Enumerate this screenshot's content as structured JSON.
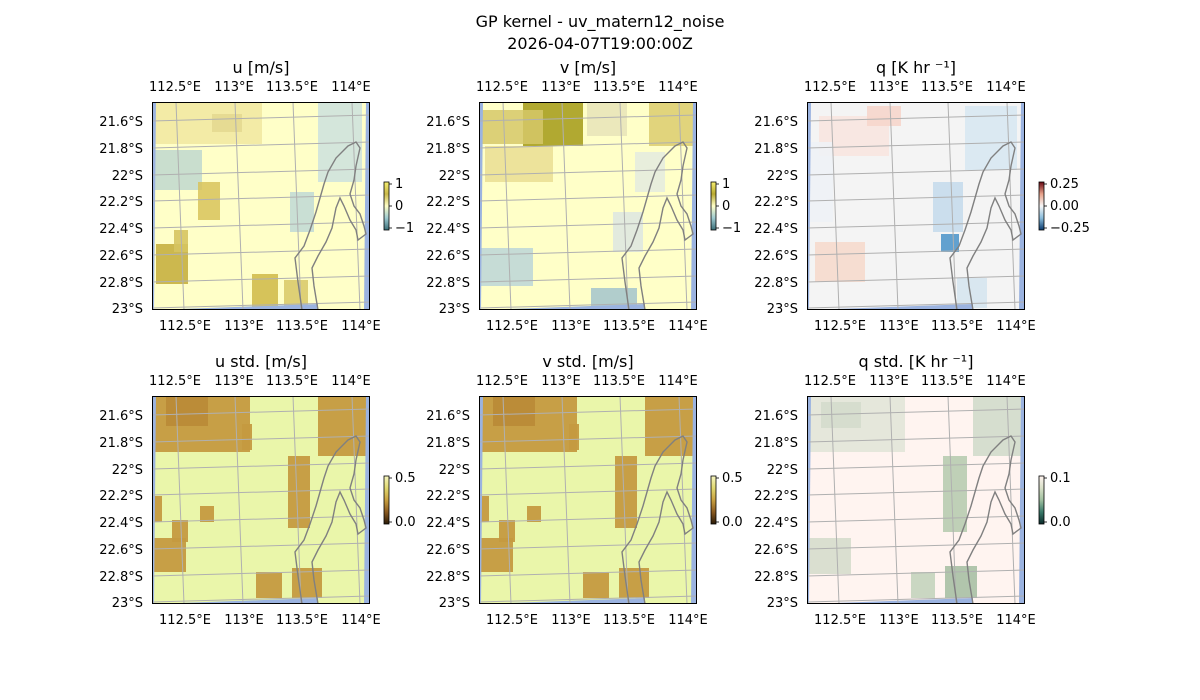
{
  "figure": {
    "title": "GP kernel - uv_matern12_noise",
    "subtitle": "2026-04-07T19:00:00Z"
  },
  "colors": {
    "land": "#9bb3e0",
    "grid": "#b0b0b0",
    "coast": "#808080",
    "frame": "#000000"
  },
  "axes": {
    "lon_ticks": [
      "112.5°E",
      "113°E",
      "113.5°E",
      "114°E"
    ],
    "lat_ticks": [
      "21.6°S",
      "21.8°S",
      "22°S",
      "22.2°S",
      "22.4°S",
      "22.6°S",
      "22.8°S",
      "23°S"
    ]
  },
  "panels": [
    {
      "title": "u [m/s]",
      "colormap": "diverging-gold-teal",
      "background": "#ffffc8",
      "colorbar": {
        "ticks": [
          "1",
          "0",
          "−1"
        ],
        "stops": [
          "#f6ef70",
          "#c8b84a",
          "#ffffc8",
          "#9ecad0",
          "#3a6e78"
        ]
      }
    },
    {
      "title": "v [m/s]",
      "colormap": "diverging-olive-teal",
      "background": "#ffffc8",
      "colorbar": {
        "ticks": [
          "1",
          "0",
          "−1"
        ],
        "stops": [
          "#f6ef70",
          "#b8a830",
          "#ffffc8",
          "#9ecad0",
          "#3a6e78"
        ]
      }
    },
    {
      "title": "q [K hr ⁻¹]",
      "colormap": "diverging-red-blue",
      "background": "#f4f4f4",
      "colorbar": {
        "ticks": [
          "0.25",
          "0.00",
          "−0.25"
        ],
        "stops": [
          "#6b0a15",
          "#e7a28a",
          "#f7f7f7",
          "#8bbddc",
          "#0a3a6e"
        ]
      }
    },
    {
      "title": "u std. [m/s]",
      "colormap": "sequential-yellow-brown",
      "background": "#eaf6aa",
      "colorbar": {
        "ticks": [
          "0.5",
          "0.0"
        ],
        "stops": [
          "#f6f6c0",
          "#e0d870",
          "#c8a040",
          "#8a5a20",
          "#2a1a08"
        ]
      }
    },
    {
      "title": "v std. [m/s]",
      "colormap": "sequential-yellow-brown",
      "background": "#eaf6aa",
      "colorbar": {
        "ticks": [
          "0.5",
          "0.0"
        ],
        "stops": [
          "#f6f6c0",
          "#e0d870",
          "#c8a040",
          "#8a5a20",
          "#2a1a08"
        ]
      }
    },
    {
      "title": "q std. [K hr ⁻¹]",
      "colormap": "sequential-pink-green",
      "background": "#fff4f0",
      "colorbar": {
        "ticks": [
          "0.1",
          "0.0"
        ],
        "stops": [
          "#fff4f0",
          "#d8e0c8",
          "#a0c0a0",
          "#3a7a6a",
          "#0a2a2a"
        ]
      }
    }
  ]
}
